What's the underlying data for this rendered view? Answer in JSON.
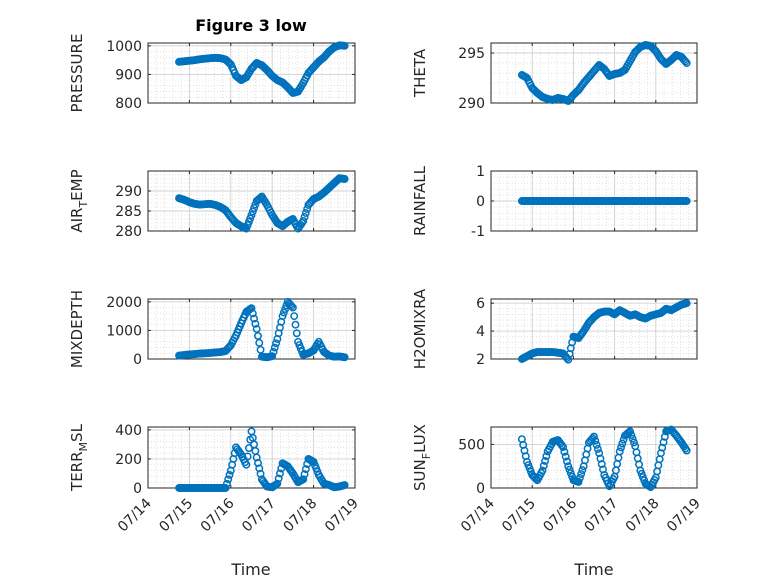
{
  "figure": {
    "title": "Figure 3 low",
    "xlabel": "Time",
    "marker_color": "#0072BD",
    "grid": true,
    "minor_grid": true
  },
  "chart_data": [
    {
      "type": "scatter",
      "ylabel": "PRESSURE",
      "ylim": [
        800,
        1010
      ],
      "yticks": [
        800,
        900,
        1000
      ],
      "xlim": [
        "07/14",
        "07/19"
      ],
      "x": [
        "07/14 18:00",
        "07/14 21:00",
        "07/15 00:00",
        "07/15 03:00",
        "07/15 06:00",
        "07/15 09:00",
        "07/15 12:00",
        "07/15 15:00",
        "07/15 18:00",
        "07/15 21:00",
        "07/16 00:00",
        "07/16 03:00",
        "07/16 06:00",
        "07/16 09:00",
        "07/16 12:00",
        "07/16 15:00",
        "07/16 18:00",
        "07/16 21:00",
        "07/17 00:00",
        "07/17 03:00",
        "07/17 06:00",
        "07/17 09:00",
        "07/17 12:00",
        "07/17 15:00",
        "07/17 18:00",
        "07/17 21:00",
        "07/18 00:00",
        "07/18 03:00",
        "07/18 06:00",
        "07/18 09:00",
        "07/18 12:00",
        "07/18 15:00",
        "07/18 18:00"
      ],
      "y": [
        944,
        946,
        948,
        950,
        953,
        955,
        957,
        958,
        957,
        952,
        935,
        895,
        880,
        890,
        920,
        940,
        932,
        915,
        895,
        880,
        872,
        855,
        835,
        840,
        870,
        905,
        925,
        945,
        960,
        980,
        995,
        1002,
        1000
      ]
    },
    {
      "type": "scatter",
      "ylabel": "THETA",
      "ylim": [
        290,
        296
      ],
      "yticks": [
        290,
        295
      ],
      "xlim": [
        "07/14",
        "07/19"
      ],
      "x": [
        "07/14 18:00",
        "07/14 21:00",
        "07/15 00:00",
        "07/15 03:00",
        "07/15 06:00",
        "07/15 09:00",
        "07/15 12:00",
        "07/15 15:00",
        "07/15 18:00",
        "07/15 21:00",
        "07/16 00:00",
        "07/16 03:00",
        "07/16 06:00",
        "07/16 09:00",
        "07/16 12:00",
        "07/16 15:00",
        "07/16 18:00",
        "07/16 21:00",
        "07/17 00:00",
        "07/17 03:00",
        "07/17 06:00",
        "07/17 09:00",
        "07/17 12:00",
        "07/17 15:00",
        "07/17 18:00",
        "07/17 21:00",
        "07/18 00:00",
        "07/18 03:00",
        "07/18 06:00",
        "07/18 09:00",
        "07/18 12:00",
        "07/18 15:00",
        "07/18 18:00"
      ],
      "y": [
        292.8,
        292.5,
        291.5,
        291.0,
        290.6,
        290.4,
        290.3,
        290.5,
        290.4,
        290.2,
        290.8,
        291.3,
        292.0,
        292.6,
        293.2,
        293.8,
        293.4,
        292.7,
        292.9,
        293.0,
        293.3,
        294.2,
        295.1,
        295.6,
        295.8,
        295.7,
        295.2,
        294.4,
        293.9,
        294.3,
        294.8,
        294.6,
        294.0
      ]
    },
    {
      "type": "scatter",
      "ylabel": "AIR_TEMP",
      "ylim": [
        280,
        295
      ],
      "yticks": [
        280,
        285,
        290
      ],
      "xlim": [
        "07/14",
        "07/19"
      ],
      "x": [
        "07/14 18:00",
        "07/14 21:00",
        "07/15 00:00",
        "07/15 03:00",
        "07/15 06:00",
        "07/15 09:00",
        "07/15 12:00",
        "07/15 15:00",
        "07/15 18:00",
        "07/15 21:00",
        "07/16 00:00",
        "07/16 03:00",
        "07/16 06:00",
        "07/16 09:00",
        "07/16 12:00",
        "07/16 15:00",
        "07/16 18:00",
        "07/16 21:00",
        "07/17 00:00",
        "07/17 03:00",
        "07/17 06:00",
        "07/17 09:00",
        "07/17 12:00",
        "07/17 15:00",
        "07/17 18:00",
        "07/17 21:00",
        "07/18 00:00",
        "07/18 03:00",
        "07/18 06:00",
        "07/18 09:00",
        "07/18 12:00",
        "07/18 15:00",
        "07/18 18:00"
      ],
      "y": [
        288.2,
        287.8,
        287.2,
        286.8,
        286.6,
        286.7,
        286.8,
        286.5,
        286.0,
        285.2,
        283.5,
        282.0,
        281.2,
        280.6,
        284.0,
        287.5,
        288.6,
        286.5,
        284.0,
        282.0,
        281.2,
        282.3,
        283.0,
        280.6,
        282.5,
        286.5,
        288.0,
        288.6,
        289.6,
        290.8,
        292.0,
        293.2,
        293.0
      ]
    },
    {
      "type": "scatter",
      "ylabel": "RAINFALL",
      "ylim": [
        -1,
        1
      ],
      "yticks": [
        -1,
        0,
        1
      ],
      "xlim": [
        "07/14",
        "07/19"
      ],
      "x": [
        "07/14 18:00",
        "07/15 00:00",
        "07/15 06:00",
        "07/15 12:00",
        "07/15 18:00",
        "07/16 00:00",
        "07/16 06:00",
        "07/16 12:00",
        "07/16 18:00",
        "07/17 00:00",
        "07/17 06:00",
        "07/17 12:00",
        "07/17 18:00",
        "07/18 00:00",
        "07/18 06:00",
        "07/18 12:00",
        "07/18 18:00"
      ],
      "y": [
        0,
        0,
        0,
        0,
        0,
        0,
        0,
        0,
        0,
        0,
        0,
        0,
        0,
        0,
        0,
        0,
        0
      ]
    },
    {
      "type": "scatter",
      "ylabel": "MIXDEPTH",
      "ylim": [
        0,
        2100
      ],
      "yticks": [
        0,
        1000,
        2000
      ],
      "xlim": [
        "07/14",
        "07/19"
      ],
      "x": [
        "07/14 18:00",
        "07/14 21:00",
        "07/15 00:00",
        "07/15 03:00",
        "07/15 06:00",
        "07/15 09:00",
        "07/15 12:00",
        "07/15 15:00",
        "07/15 18:00",
        "07/15 21:00",
        "07/16 00:00",
        "07/16 03:00",
        "07/16 06:00",
        "07/16 09:00",
        "07/16 12:00",
        "07/16 15:00",
        "07/16 18:00",
        "07/16 21:00",
        "07/17 00:00",
        "07/17 03:00",
        "07/17 06:00",
        "07/17 09:00",
        "07/17 12:00",
        "07/17 15:00",
        "07/17 18:00",
        "07/17 21:00",
        "07/18 00:00",
        "07/18 03:00",
        "07/18 06:00",
        "07/18 09:00",
        "07/18 12:00",
        "07/18 15:00",
        "07/18 18:00"
      ],
      "y": [
        120,
        140,
        160,
        170,
        190,
        200,
        210,
        230,
        240,
        280,
        480,
        820,
        1250,
        1650,
        1780,
        1050,
        80,
        60,
        100,
        700,
        1500,
        2000,
        1800,
        600,
        150,
        200,
        300,
        600,
        250,
        120,
        80,
        90,
        60
      ]
    },
    {
      "type": "scatter",
      "ylabel": "H2OMIXRA",
      "ylim": [
        2,
        6.3
      ],
      "yticks": [
        2,
        4,
        6
      ],
      "xlim": [
        "07/14",
        "07/19"
      ],
      "x": [
        "07/14 18:00",
        "07/14 21:00",
        "07/15 00:00",
        "07/15 03:00",
        "07/15 06:00",
        "07/15 09:00",
        "07/15 12:00",
        "07/15 15:00",
        "07/15 18:00",
        "07/15 21:00",
        "07/16 00:00",
        "07/16 03:00",
        "07/16 06:00",
        "07/16 09:00",
        "07/16 12:00",
        "07/16 15:00",
        "07/16 18:00",
        "07/16 21:00",
        "07/17 00:00",
        "07/17 03:00",
        "07/17 06:00",
        "07/17 09:00",
        "07/17 12:00",
        "07/17 15:00",
        "07/17 18:00",
        "07/17 21:00",
        "07/18 00:00",
        "07/18 03:00",
        "07/18 06:00",
        "07/18 09:00",
        "07/18 12:00",
        "07/18 15:00",
        "07/18 18:00"
      ],
      "y": [
        2.0,
        2.2,
        2.4,
        2.5,
        2.5,
        2.5,
        2.5,
        2.45,
        2.4,
        1.95,
        3.6,
        3.5,
        4.0,
        4.6,
        5.0,
        5.3,
        5.4,
        5.4,
        5.2,
        5.5,
        5.3,
        5.1,
        5.2,
        5.0,
        4.9,
        5.1,
        5.2,
        5.3,
        5.6,
        5.5,
        5.7,
        5.9,
        6.0
      ]
    },
    {
      "type": "scatter",
      "ylabel": "TERR_MSL",
      "ylim": [
        0,
        420
      ],
      "yticks": [
        0,
        200,
        400
      ],
      "xlim": [
        "07/14",
        "07/19"
      ],
      "x": [
        "07/14 18:00",
        "07/14 21:00",
        "07/15 00:00",
        "07/15 03:00",
        "07/15 06:00",
        "07/15 09:00",
        "07/15 12:00",
        "07/15 15:00",
        "07/15 18:00",
        "07/15 21:00",
        "07/16 00:00",
        "07/16 03:00",
        "07/16 06:00",
        "07/16 09:00",
        "07/16 12:00",
        "07/16 15:00",
        "07/16 18:00",
        "07/16 21:00",
        "07/17 00:00",
        "07/17 03:00",
        "07/17 06:00",
        "07/17 09:00",
        "07/17 12:00",
        "07/17 15:00",
        "07/17 18:00",
        "07/17 21:00",
        "07/18 00:00",
        "07/18 03:00",
        "07/18 06:00",
        "07/18 09:00",
        "07/18 12:00",
        "07/18 15:00",
        "07/18 18:00"
      ],
      "y": [
        0,
        0,
        0,
        0,
        0,
        0,
        0,
        0,
        0,
        0,
        120,
        280,
        230,
        160,
        390,
        210,
        60,
        10,
        5,
        30,
        170,
        150,
        100,
        40,
        60,
        200,
        180,
        90,
        30,
        20,
        5,
        10,
        20
      ]
    },
    {
      "type": "scatter",
      "ylabel": "SUN_FLUX",
      "ylim": [
        0,
        700
      ],
      "yticks": [
        0,
        500
      ],
      "xlim": [
        "07/14",
        "07/19"
      ],
      "x": [
        "07/14 18:00",
        "07/14 21:00",
        "07/15 00:00",
        "07/15 03:00",
        "07/15 06:00",
        "07/15 09:00",
        "07/15 12:00",
        "07/15 15:00",
        "07/15 18:00",
        "07/15 21:00",
        "07/16 00:00",
        "07/16 03:00",
        "07/16 06:00",
        "07/16 09:00",
        "07/16 12:00",
        "07/16 15:00",
        "07/16 18:00",
        "07/16 21:00",
        "07/17 00:00",
        "07/17 03:00",
        "07/17 06:00",
        "07/17 09:00",
        "07/17 12:00",
        "07/17 15:00",
        "07/17 18:00",
        "07/17 21:00",
        "07/18 00:00",
        "07/18 03:00",
        "07/18 06:00",
        "07/18 09:00",
        "07/18 12:00",
        "07/18 15:00",
        "07/18 18:00"
      ],
      "y": [
        560,
        300,
        150,
        90,
        200,
        420,
        530,
        550,
        470,
        250,
        90,
        70,
        250,
        520,
        590,
        400,
        150,
        20,
        130,
        420,
        600,
        650,
        480,
        200,
        50,
        10,
        120,
        400,
        650,
        670,
        600,
        520,
        430
      ]
    }
  ]
}
